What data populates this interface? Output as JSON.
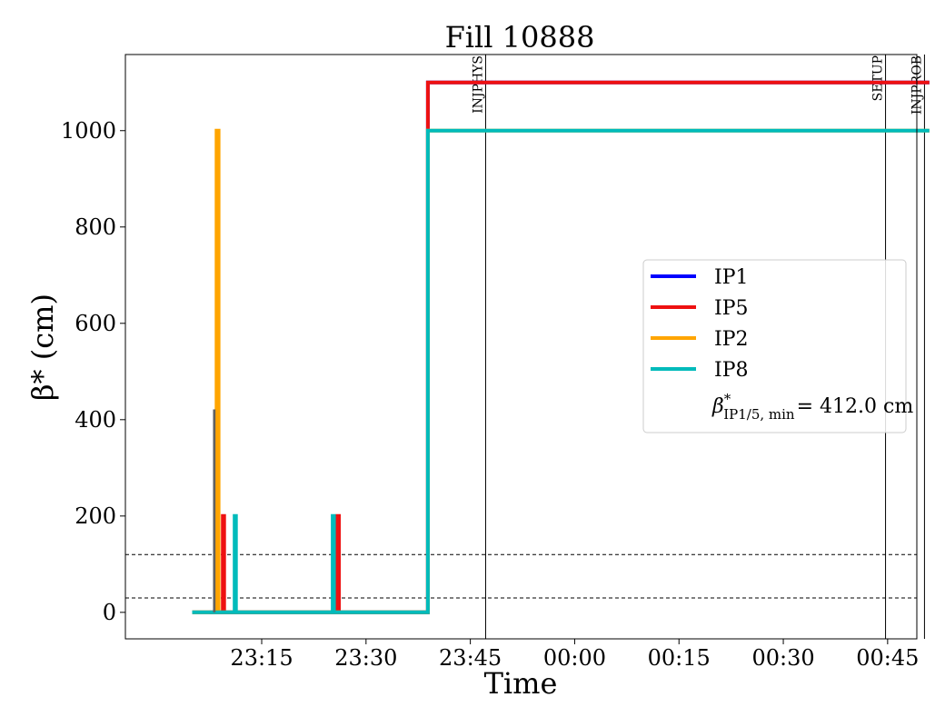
{
  "chart_data": {
    "type": "line",
    "title": "Fill 10888",
    "xlabel": "Time",
    "ylabel": "β* (cm)",
    "x_ticks": [
      "23:15",
      "23:30",
      "23:45",
      "00:00",
      "00:15",
      "00:30",
      "00:45"
    ],
    "y_ticks": [
      "0",
      "200",
      "400",
      "600",
      "800",
      "1000"
    ],
    "x_tick_minutes": [
      15,
      30,
      45,
      60,
      75,
      90,
      105
    ],
    "xlim_minutes": [
      -4.6,
      109.2
    ],
    "ylim": [
      -55,
      1158
    ],
    "legend_position": "center-right",
    "series": [
      {
        "name": "IP1",
        "color": "#0000ff",
        "points": [
          [
            7.5,
            0
          ],
          [
            38.9,
            0
          ],
          [
            38.9,
            1100
          ],
          [
            111,
            1100
          ]
        ]
      },
      {
        "name": "IP5",
        "color": "#ee1111",
        "points": [
          [
            5,
            0
          ],
          [
            9.4,
            0
          ],
          [
            9.4,
            200
          ],
          [
            9.6,
            200
          ],
          [
            9.6,
            0
          ],
          [
            25.9,
            0
          ],
          [
            25.9,
            200
          ],
          [
            26.1,
            200
          ],
          [
            26.1,
            0
          ],
          [
            38.9,
            0
          ],
          [
            38.9,
            1100
          ],
          [
            111,
            1100
          ]
        ]
      },
      {
        "name": "IP2",
        "color": "#ffa500",
        "points": [
          [
            5,
            0
          ],
          [
            8.5,
            0
          ],
          [
            8.5,
            1000
          ],
          [
            8.8,
            1000
          ],
          [
            8.8,
            0
          ],
          [
            38.9,
            0
          ],
          [
            38.9,
            1000
          ],
          [
            111,
            1000
          ]
        ]
      },
      {
        "name": "IP8",
        "color": "#00bbbb",
        "points": [
          [
            5,
            0
          ],
          [
            11.1,
            0
          ],
          [
            11.1,
            200
          ],
          [
            11.3,
            200
          ],
          [
            11.3,
            0
          ],
          [
            25.2,
            0
          ],
          [
            25.2,
            200
          ],
          [
            25.4,
            200
          ],
          [
            25.4,
            0
          ],
          [
            38.9,
            0
          ],
          [
            38.9,
            1000
          ],
          [
            111,
            1000
          ]
        ]
      }
    ],
    "extra_mark": {
      "color": "#606060",
      "points": [
        [
          8.1,
          0
        ],
        [
          8.1,
          420
        ],
        [
          8.25,
          420
        ],
        [
          8.25,
          0
        ]
      ]
    },
    "vlines": [
      {
        "label": "INJPHYS",
        "minute": 47.2
      },
      {
        "label": "SETUP",
        "minute": 104.7
      },
      {
        "label": "INJPROB",
        "minute": 110.3
      }
    ],
    "hlines": [
      30,
      120
    ],
    "legend_extra": {
      "base": "β",
      "superscript": "*",
      "subscript": "IP1/5, min",
      "suffix": "= 412.0 cm"
    }
  }
}
